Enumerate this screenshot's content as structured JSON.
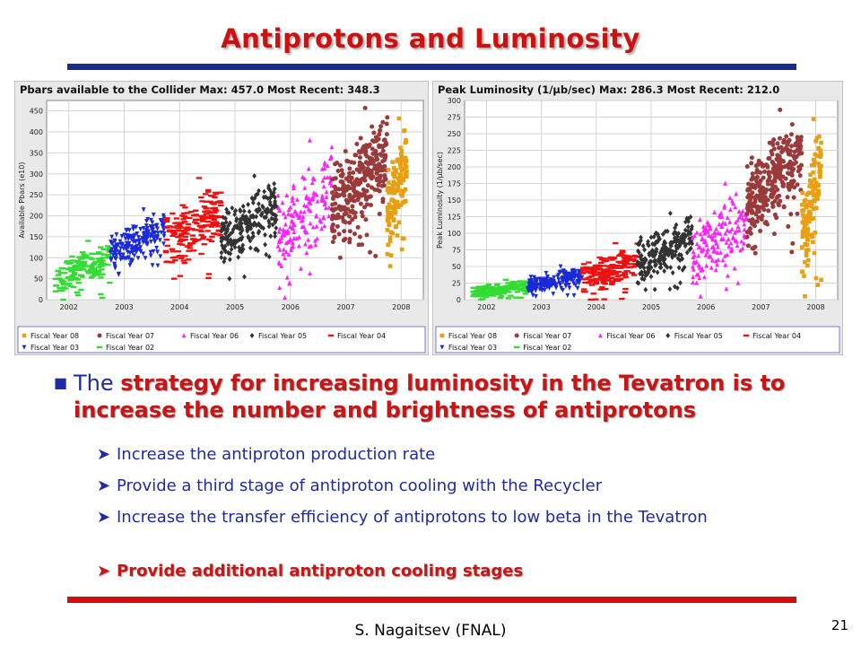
{
  "slide": {
    "title": "Antiprotons and Luminosity",
    "footer": "S. Nagaitsev (FNAL)",
    "page_number": "21"
  },
  "bullets": {
    "main_prefix": "The ",
    "main_emphasis": "strategy for increasing luminosity in the Tevatron is to increase the number and brightness of antiprotons",
    "sub": [
      "Increase the antiproton production rate",
      "Provide a third stage of antiproton cooling with the Recycler",
      "Increase the transfer efficiency of antiprotons to low beta in the Tevatron",
      "Provide additional  antiproton cooling stages"
    ]
  },
  "colors": {
    "title": "#cc1111",
    "bullet_text": "#1e2aa8",
    "top_rule": "#1d2b8f",
    "bottom_rule": "#cc1111"
  },
  "chart_data": [
    {
      "type": "scatter",
      "title": "Pbars available to the Collider  Max: 457.0 Most Recent:  348.3",
      "ylabel": "Available Pbars (e10)",
      "xlabel": "",
      "xlim": [
        2001.6,
        2008.4
      ],
      "ylim": [
        0,
        475
      ],
      "xticks": [
        2002,
        2003,
        2004,
        2005,
        2006,
        2007,
        2008
      ],
      "yticks": [
        0,
        50,
        100,
        150,
        200,
        250,
        300,
        350,
        400,
        450
      ],
      "grid": true,
      "legend_position": "bottom",
      "series": [
        {
          "name": "Fiscal Year 08",
          "color": "#e8a012",
          "marker": "square",
          "x_range": [
            2007.75,
            2008.1
          ],
          "y_min": 80,
          "y_max": 432,
          "count": 130
        },
        {
          "name": "Fiscal Year 07",
          "color": "#9b3a3a",
          "marker": "circle",
          "x_range": [
            2006.75,
            2007.75
          ],
          "y_min": 100,
          "y_max": 457,
          "count": 300
        },
        {
          "name": "Fiscal Year 06",
          "color": "#ff22ff",
          "marker": "triangle-up",
          "x_range": [
            2005.75,
            2006.75
          ],
          "y_min": 5,
          "y_max": 380,
          "count": 160
        },
        {
          "name": "Fiscal Year 05",
          "color": "#333333",
          "marker": "diamond",
          "x_range": [
            2004.75,
            2005.75
          ],
          "y_min": 50,
          "y_max": 295,
          "count": 220
        },
        {
          "name": "Fiscal Year 04",
          "color": "#ee1111",
          "marker": "dash",
          "x_range": [
            2003.75,
            2004.75
          ],
          "y_min": 50,
          "y_max": 290,
          "count": 190
        },
        {
          "name": "Fiscal Year 03",
          "color": "#1a2ad8",
          "marker": "triangle-down",
          "x_range": [
            2002.75,
            2003.75
          ],
          "y_min": 60,
          "y_max": 215,
          "count": 190
        },
        {
          "name": "Fiscal Year 02",
          "color": "#33dd33",
          "marker": "dash",
          "x_range": [
            2001.75,
            2002.75
          ],
          "y_min": 0,
          "y_max": 140,
          "count": 150
        }
      ]
    },
    {
      "type": "scatter",
      "title": "Peak Luminosity  (1/μb/sec)  Max: 286.3 Most Recent:  212.0",
      "ylabel": "Peak Luminosity (1/μb/sec)",
      "xlabel": "",
      "xlim": [
        2001.6,
        2008.4
      ],
      "ylim": [
        0,
        300
      ],
      "xticks": [
        2002,
        2003,
        2004,
        2005,
        2006,
        2007,
        2008
      ],
      "yticks": [
        0,
        25,
        50,
        75,
        100,
        125,
        150,
        175,
        200,
        225,
        250,
        275,
        300
      ],
      "grid": true,
      "legend_position": "bottom",
      "series": [
        {
          "name": "Fiscal Year 08",
          "color": "#e8a012",
          "marker": "square",
          "x_range": [
            2007.75,
            2008.1
          ],
          "y_min": 5,
          "y_max": 272,
          "count": 130
        },
        {
          "name": "Fiscal Year 07",
          "color": "#9b3a3a",
          "marker": "circle",
          "x_range": [
            2006.75,
            2007.75
          ],
          "y_min": 70,
          "y_max": 286,
          "count": 300
        },
        {
          "name": "Fiscal Year 06",
          "color": "#ff22ff",
          "marker": "triangle-up",
          "x_range": [
            2005.75,
            2006.75
          ],
          "y_min": 5,
          "y_max": 175,
          "count": 160
        },
        {
          "name": "Fiscal Year 05",
          "color": "#333333",
          "marker": "diamond",
          "x_range": [
            2004.75,
            2005.75
          ],
          "y_min": 15,
          "y_max": 130,
          "count": 220
        },
        {
          "name": "Fiscal Year 04",
          "color": "#ee1111",
          "marker": "dash",
          "x_range": [
            2003.75,
            2004.75
          ],
          "y_min": 0,
          "y_max": 85,
          "count": 190
        },
        {
          "name": "Fiscal Year 03",
          "color": "#1a2ad8",
          "marker": "triangle-down",
          "x_range": [
            2002.75,
            2003.75
          ],
          "y_min": 5,
          "y_max": 50,
          "count": 190
        },
        {
          "name": "Fiscal Year 02",
          "color": "#33dd33",
          "marker": "dash",
          "x_range": [
            2001.75,
            2002.75
          ],
          "y_min": 0,
          "y_max": 30,
          "count": 150
        }
      ]
    }
  ]
}
